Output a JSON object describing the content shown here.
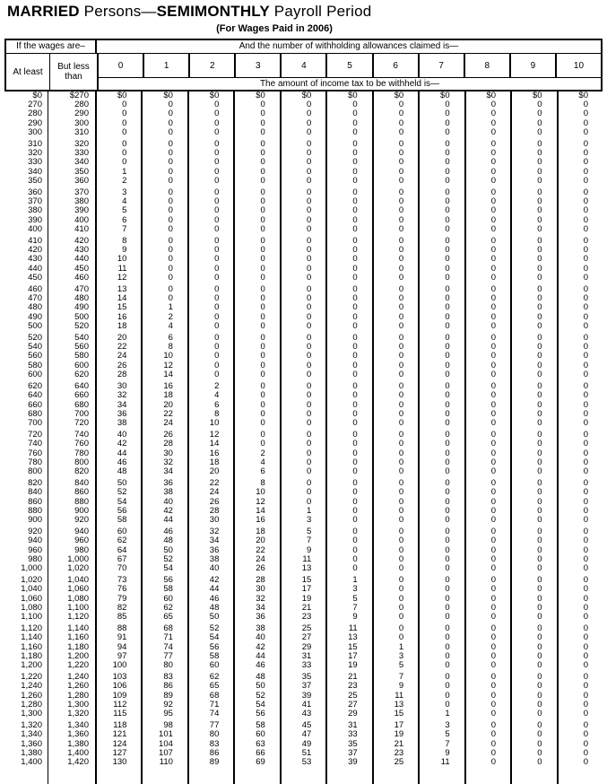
{
  "title": {
    "part1": "MARRIED",
    "part2": " Persons—",
    "part3": "SEMIMONTHLY",
    "part4": " Payroll Period"
  },
  "subtitle": "(For Wages Paid in 2006)",
  "table": {
    "wages_header": "If the wages are–",
    "allowances_header": "And the number of withholding allowances claimed is—",
    "at_least_label": "At least",
    "but_less_label": "But less than",
    "allowance_columns": [
      "0",
      "1",
      "2",
      "3",
      "4",
      "5",
      "6",
      "7",
      "8",
      "9",
      "10"
    ],
    "amount_header": "The amount of income tax to be withheld is—",
    "row_blocks": [
      [
        [
          "$0",
          "$270",
          "$0",
          "$0",
          "$0",
          "$0",
          "$0",
          "$0",
          "$0",
          "$0",
          "$0",
          "$0",
          "$0"
        ],
        [
          "270",
          "280",
          "0",
          "0",
          "0",
          "0",
          "0",
          "0",
          "0",
          "0",
          "0",
          "0",
          "0"
        ],
        [
          "280",
          "290",
          "0",
          "0",
          "0",
          "0",
          "0",
          "0",
          "0",
          "0",
          "0",
          "0",
          "0"
        ],
        [
          "290",
          "300",
          "0",
          "0",
          "0",
          "0",
          "0",
          "0",
          "0",
          "0",
          "0",
          "0",
          "0"
        ],
        [
          "300",
          "310",
          "0",
          "0",
          "0",
          "0",
          "0",
          "0",
          "0",
          "0",
          "0",
          "0",
          "0"
        ]
      ],
      [
        [
          "310",
          "320",
          "0",
          "0",
          "0",
          "0",
          "0",
          "0",
          "0",
          "0",
          "0",
          "0",
          "0"
        ],
        [
          "320",
          "330",
          "0",
          "0",
          "0",
          "0",
          "0",
          "0",
          "0",
          "0",
          "0",
          "0",
          "0"
        ],
        [
          "330",
          "340",
          "0",
          "0",
          "0",
          "0",
          "0",
          "0",
          "0",
          "0",
          "0",
          "0",
          "0"
        ],
        [
          "340",
          "350",
          "1",
          "0",
          "0",
          "0",
          "0",
          "0",
          "0",
          "0",
          "0",
          "0",
          "0"
        ],
        [
          "350",
          "360",
          "2",
          "0",
          "0",
          "0",
          "0",
          "0",
          "0",
          "0",
          "0",
          "0",
          "0"
        ]
      ],
      [
        [
          "360",
          "370",
          "3",
          "0",
          "0",
          "0",
          "0",
          "0",
          "0",
          "0",
          "0",
          "0",
          "0"
        ],
        [
          "370",
          "380",
          "4",
          "0",
          "0",
          "0",
          "0",
          "0",
          "0",
          "0",
          "0",
          "0",
          "0"
        ],
        [
          "380",
          "390",
          "5",
          "0",
          "0",
          "0",
          "0",
          "0",
          "0",
          "0",
          "0",
          "0",
          "0"
        ],
        [
          "390",
          "400",
          "6",
          "0",
          "0",
          "0",
          "0",
          "0",
          "0",
          "0",
          "0",
          "0",
          "0"
        ],
        [
          "400",
          "410",
          "7",
          "0",
          "0",
          "0",
          "0",
          "0",
          "0",
          "0",
          "0",
          "0",
          "0"
        ]
      ],
      [
        [
          "410",
          "420",
          "8",
          "0",
          "0",
          "0",
          "0",
          "0",
          "0",
          "0",
          "0",
          "0",
          "0"
        ],
        [
          "420",
          "430",
          "9",
          "0",
          "0",
          "0",
          "0",
          "0",
          "0",
          "0",
          "0",
          "0",
          "0"
        ],
        [
          "430",
          "440",
          "10",
          "0",
          "0",
          "0",
          "0",
          "0",
          "0",
          "0",
          "0",
          "0",
          "0"
        ],
        [
          "440",
          "450",
          "11",
          "0",
          "0",
          "0",
          "0",
          "0",
          "0",
          "0",
          "0",
          "0",
          "0"
        ],
        [
          "450",
          "460",
          "12",
          "0",
          "0",
          "0",
          "0",
          "0",
          "0",
          "0",
          "0",
          "0",
          "0"
        ]
      ],
      [
        [
          "460",
          "470",
          "13",
          "0",
          "0",
          "0",
          "0",
          "0",
          "0",
          "0",
          "0",
          "0",
          "0"
        ],
        [
          "470",
          "480",
          "14",
          "0",
          "0",
          "0",
          "0",
          "0",
          "0",
          "0",
          "0",
          "0",
          "0"
        ],
        [
          "480",
          "490",
          "15",
          "1",
          "0",
          "0",
          "0",
          "0",
          "0",
          "0",
          "0",
          "0",
          "0"
        ],
        [
          "490",
          "500",
          "16",
          "2",
          "0",
          "0",
          "0",
          "0",
          "0",
          "0",
          "0",
          "0",
          "0"
        ],
        [
          "500",
          "520",
          "18",
          "4",
          "0",
          "0",
          "0",
          "0",
          "0",
          "0",
          "0",
          "0",
          "0"
        ]
      ],
      [
        [
          "520",
          "540",
          "20",
          "6",
          "0",
          "0",
          "0",
          "0",
          "0",
          "0",
          "0",
          "0",
          "0"
        ],
        [
          "540",
          "560",
          "22",
          "8",
          "0",
          "0",
          "0",
          "0",
          "0",
          "0",
          "0",
          "0",
          "0"
        ],
        [
          "560",
          "580",
          "24",
          "10",
          "0",
          "0",
          "0",
          "0",
          "0",
          "0",
          "0",
          "0",
          "0"
        ],
        [
          "580",
          "600",
          "26",
          "12",
          "0",
          "0",
          "0",
          "0",
          "0",
          "0",
          "0",
          "0",
          "0"
        ],
        [
          "600",
          "620",
          "28",
          "14",
          "0",
          "0",
          "0",
          "0",
          "0",
          "0",
          "0",
          "0",
          "0"
        ]
      ],
      [
        [
          "620",
          "640",
          "30",
          "16",
          "2",
          "0",
          "0",
          "0",
          "0",
          "0",
          "0",
          "0",
          "0"
        ],
        [
          "640",
          "660",
          "32",
          "18",
          "4",
          "0",
          "0",
          "0",
          "0",
          "0",
          "0",
          "0",
          "0"
        ],
        [
          "660",
          "680",
          "34",
          "20",
          "6",
          "0",
          "0",
          "0",
          "0",
          "0",
          "0",
          "0",
          "0"
        ],
        [
          "680",
          "700",
          "36",
          "22",
          "8",
          "0",
          "0",
          "0",
          "0",
          "0",
          "0",
          "0",
          "0"
        ],
        [
          "700",
          "720",
          "38",
          "24",
          "10",
          "0",
          "0",
          "0",
          "0",
          "0",
          "0",
          "0",
          "0"
        ]
      ],
      [
        [
          "720",
          "740",
          "40",
          "26",
          "12",
          "0",
          "0",
          "0",
          "0",
          "0",
          "0",
          "0",
          "0"
        ],
        [
          "740",
          "760",
          "42",
          "28",
          "14",
          "0",
          "0",
          "0",
          "0",
          "0",
          "0",
          "0",
          "0"
        ],
        [
          "760",
          "780",
          "44",
          "30",
          "16",
          "2",
          "0",
          "0",
          "0",
          "0",
          "0",
          "0",
          "0"
        ],
        [
          "780",
          "800",
          "46",
          "32",
          "18",
          "4",
          "0",
          "0",
          "0",
          "0",
          "0",
          "0",
          "0"
        ],
        [
          "800",
          "820",
          "48",
          "34",
          "20",
          "6",
          "0",
          "0",
          "0",
          "0",
          "0",
          "0",
          "0"
        ]
      ],
      [
        [
          "820",
          "840",
          "50",
          "36",
          "22",
          "8",
          "0",
          "0",
          "0",
          "0",
          "0",
          "0",
          "0"
        ],
        [
          "840",
          "860",
          "52",
          "38",
          "24",
          "10",
          "0",
          "0",
          "0",
          "0",
          "0",
          "0",
          "0"
        ],
        [
          "860",
          "880",
          "54",
          "40",
          "26",
          "12",
          "0",
          "0",
          "0",
          "0",
          "0",
          "0",
          "0"
        ],
        [
          "880",
          "900",
          "56",
          "42",
          "28",
          "14",
          "1",
          "0",
          "0",
          "0",
          "0",
          "0",
          "0"
        ],
        [
          "900",
          "920",
          "58",
          "44",
          "30",
          "16",
          "3",
          "0",
          "0",
          "0",
          "0",
          "0",
          "0"
        ]
      ],
      [
        [
          "920",
          "940",
          "60",
          "46",
          "32",
          "18",
          "5",
          "0",
          "0",
          "0",
          "0",
          "0",
          "0"
        ],
        [
          "940",
          "960",
          "62",
          "48",
          "34",
          "20",
          "7",
          "0",
          "0",
          "0",
          "0",
          "0",
          "0"
        ],
        [
          "960",
          "980",
          "64",
          "50",
          "36",
          "22",
          "9",
          "0",
          "0",
          "0",
          "0",
          "0",
          "0"
        ],
        [
          "980",
          "1,000",
          "67",
          "52",
          "38",
          "24",
          "11",
          "0",
          "0",
          "0",
          "0",
          "0",
          "0"
        ],
        [
          "1,000",
          "1,020",
          "70",
          "54",
          "40",
          "26",
          "13",
          "0",
          "0",
          "0",
          "0",
          "0",
          "0"
        ]
      ],
      [
        [
          "1,020",
          "1,040",
          "73",
          "56",
          "42",
          "28",
          "15",
          "1",
          "0",
          "0",
          "0",
          "0",
          "0"
        ],
        [
          "1,040",
          "1,060",
          "76",
          "58",
          "44",
          "30",
          "17",
          "3",
          "0",
          "0",
          "0",
          "0",
          "0"
        ],
        [
          "1,060",
          "1,080",
          "79",
          "60",
          "46",
          "32",
          "19",
          "5",
          "0",
          "0",
          "0",
          "0",
          "0"
        ],
        [
          "1,080",
          "1,100",
          "82",
          "62",
          "48",
          "34",
          "21",
          "7",
          "0",
          "0",
          "0",
          "0",
          "0"
        ],
        [
          "1,100",
          "1,120",
          "85",
          "65",
          "50",
          "36",
          "23",
          "9",
          "0",
          "0",
          "0",
          "0",
          "0"
        ]
      ],
      [
        [
          "1,120",
          "1,140",
          "88",
          "68",
          "52",
          "38",
          "25",
          "11",
          "0",
          "0",
          "0",
          "0",
          "0"
        ],
        [
          "1,140",
          "1,160",
          "91",
          "71",
          "54",
          "40",
          "27",
          "13",
          "0",
          "0",
          "0",
          "0",
          "0"
        ],
        [
          "1,160",
          "1,180",
          "94",
          "74",
          "56",
          "42",
          "29",
          "15",
          "1",
          "0",
          "0",
          "0",
          "0"
        ],
        [
          "1,180",
          "1,200",
          "97",
          "77",
          "58",
          "44",
          "31",
          "17",
          "3",
          "0",
          "0",
          "0",
          "0"
        ],
        [
          "1,200",
          "1,220",
          "100",
          "80",
          "60",
          "46",
          "33",
          "19",
          "5",
          "0",
          "0",
          "0",
          "0"
        ]
      ],
      [
        [
          "1,220",
          "1,240",
          "103",
          "83",
          "62",
          "48",
          "35",
          "21",
          "7",
          "0",
          "0",
          "0",
          "0"
        ],
        [
          "1,240",
          "1,260",
          "106",
          "86",
          "65",
          "50",
          "37",
          "23",
          "9",
          "0",
          "0",
          "0",
          "0"
        ],
        [
          "1,260",
          "1,280",
          "109",
          "89",
          "68",
          "52",
          "39",
          "25",
          "11",
          "0",
          "0",
          "0",
          "0"
        ],
        [
          "1,280",
          "1,300",
          "112",
          "92",
          "71",
          "54",
          "41",
          "27",
          "13",
          "0",
          "0",
          "0",
          "0"
        ],
        [
          "1,300",
          "1,320",
          "115",
          "95",
          "74",
          "56",
          "43",
          "29",
          "15",
          "1",
          "0",
          "0",
          "0"
        ]
      ],
      [
        [
          "1,320",
          "1,340",
          "118",
          "98",
          "77",
          "58",
          "45",
          "31",
          "17",
          "3",
          "0",
          "0",
          "0"
        ],
        [
          "1,340",
          "1,360",
          "121",
          "101",
          "80",
          "60",
          "47",
          "33",
          "19",
          "5",
          "0",
          "0",
          "0"
        ],
        [
          "1,360",
          "1,380",
          "124",
          "104",
          "83",
          "63",
          "49",
          "35",
          "21",
          "7",
          "0",
          "0",
          "0"
        ],
        [
          "1,380",
          "1,400",
          "127",
          "107",
          "86",
          "66",
          "51",
          "37",
          "23",
          "9",
          "0",
          "0",
          "0"
        ],
        [
          "1,400",
          "1,420",
          "130",
          "110",
          "89",
          "69",
          "53",
          "39",
          "25",
          "11",
          "0",
          "0",
          "0"
        ]
      ]
    ]
  }
}
